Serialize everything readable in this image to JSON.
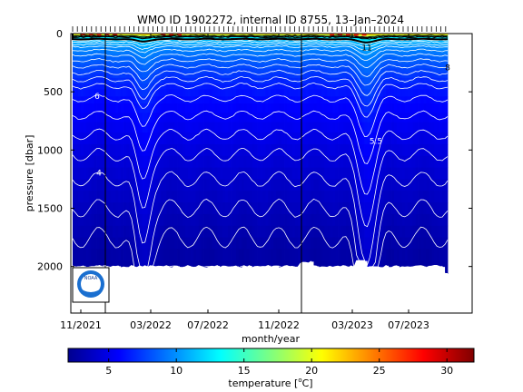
{
  "chart_data": {
    "type": "heatmap",
    "title": "WMO ID 1902272, internal ID 8755, 13–Jan–2024",
    "xlabel": "month/year",
    "ylabel": "pressure [dbar]",
    "x_ticks": [
      "11/2021",
      "03/2022",
      "07/2022",
      "11/2022",
      "03/2023",
      "07/2023"
    ],
    "y_ticks": [
      "0",
      "500",
      "1000",
      "1500",
      "2000"
    ],
    "ylim": [
      2400,
      0
    ],
    "colorbar": {
      "label": "temperature [",
      "label_unit": "o",
      "label_suffix": "C]",
      "ticks": [
        "5",
        "10",
        "15",
        "20",
        "25",
        "30"
      ],
      "range": [
        2,
        32
      ],
      "colormap": "jet"
    },
    "isotherms": [
      {
        "value": 8,
        "label": "8"
      },
      {
        "value": 11,
        "label": "11"
      },
      {
        "value": 6,
        "label": "6"
      },
      {
        "value": 5.5,
        "label": "5.5"
      },
      {
        "value": 4,
        "label": "4"
      },
      {
        "value": 2.5,
        "label": "2.5"
      }
    ],
    "contour_interval": 0.5,
    "grid": false,
    "logo": "NOAA"
  },
  "colors": {
    "deep": "#00008f",
    "surface_warm": "#ff2a00",
    "isotherm": "#ffffff"
  }
}
